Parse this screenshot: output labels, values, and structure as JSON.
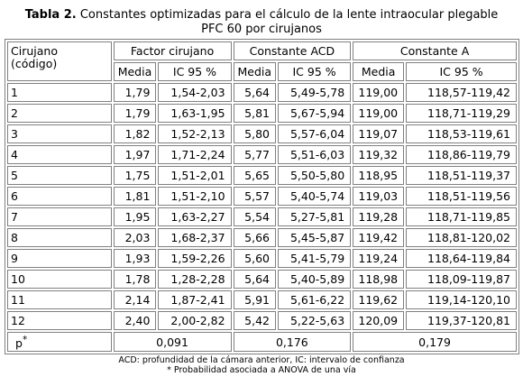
{
  "caption": {
    "label": "Tabla 2.",
    "line1": " Constantes optimizadas para el cálculo de la lente intraocular plegable",
    "line2": "PFC 60 por cirujanos"
  },
  "table": {
    "header": {
      "code_line1": "Cirujano",
      "code_line2": "(código)",
      "groups": [
        "Factor cirujano",
        "Constante ACD",
        "Constante A"
      ],
      "sub": [
        "Media",
        "IC 95 %",
        "Media",
        "IC 95 %",
        "Media",
        "IC 95 %"
      ]
    },
    "rows": [
      [
        "1",
        "1,79",
        "1,54-2,03",
        "5,64",
        "5,49-5,78",
        "119,00",
        "118,57-119,42"
      ],
      [
        "2",
        "1,79",
        "1,63-1,95",
        "5,81",
        "5,67-5,94",
        "119,00",
        "118,71-119,29"
      ],
      [
        "3",
        "1,82",
        "1,52-2,13",
        "5,80",
        "5,57-6,04",
        "119,07",
        "118,53-119,61"
      ],
      [
        "4",
        "1,97",
        "1,71-2,24",
        "5,77",
        "5,51-6,03",
        "119,32",
        "118,86-119,79"
      ],
      [
        "5",
        "1,75",
        "1,51-2,01",
        "5,65",
        "5,50-5,80",
        "118,95",
        "118,51-119,37"
      ],
      [
        "6",
        "1,81",
        "1,51-2,10",
        "5,57",
        "5,40-5,74",
        "119,03",
        "118,51-119,56"
      ],
      [
        "7",
        "1,95",
        "1,63-2,27",
        "5,54",
        "5,27-5,81",
        "119,28",
        "118,71-119,85"
      ],
      [
        "8",
        "2,03",
        "1,68-2,37",
        "5,66",
        "5,45-5,87",
        "119,42",
        "118,81-120,02"
      ],
      [
        "9",
        "1,93",
        "1,59-2,26",
        "5,60",
        "5,41-5,79",
        "119,24",
        "118,64-119,84"
      ],
      [
        "10",
        "1,78",
        "1,28-2,28",
        "5,64",
        "5,40-5,89",
        "118,98",
        "118,09-119,87"
      ],
      [
        "11",
        "2,14",
        "1,87-2,41",
        "5,91",
        "5,61-6,22",
        "119,62",
        "119,14-120,10"
      ],
      [
        "12",
        "2,40",
        "2,00-2,82",
        "5,42",
        "5,22-5,63",
        "120,09",
        "119,37-120,81"
      ]
    ],
    "p_row": {
      "label": "p",
      "label_sup": "*",
      "values": [
        "0,091",
        "0,176",
        "0,179"
      ]
    }
  },
  "footnotes": [
    "ACD: profundidad de la cámara anterior, IC: intervalo de confianza",
    "* Probabilidad asociada a ANOVA de una vía"
  ]
}
